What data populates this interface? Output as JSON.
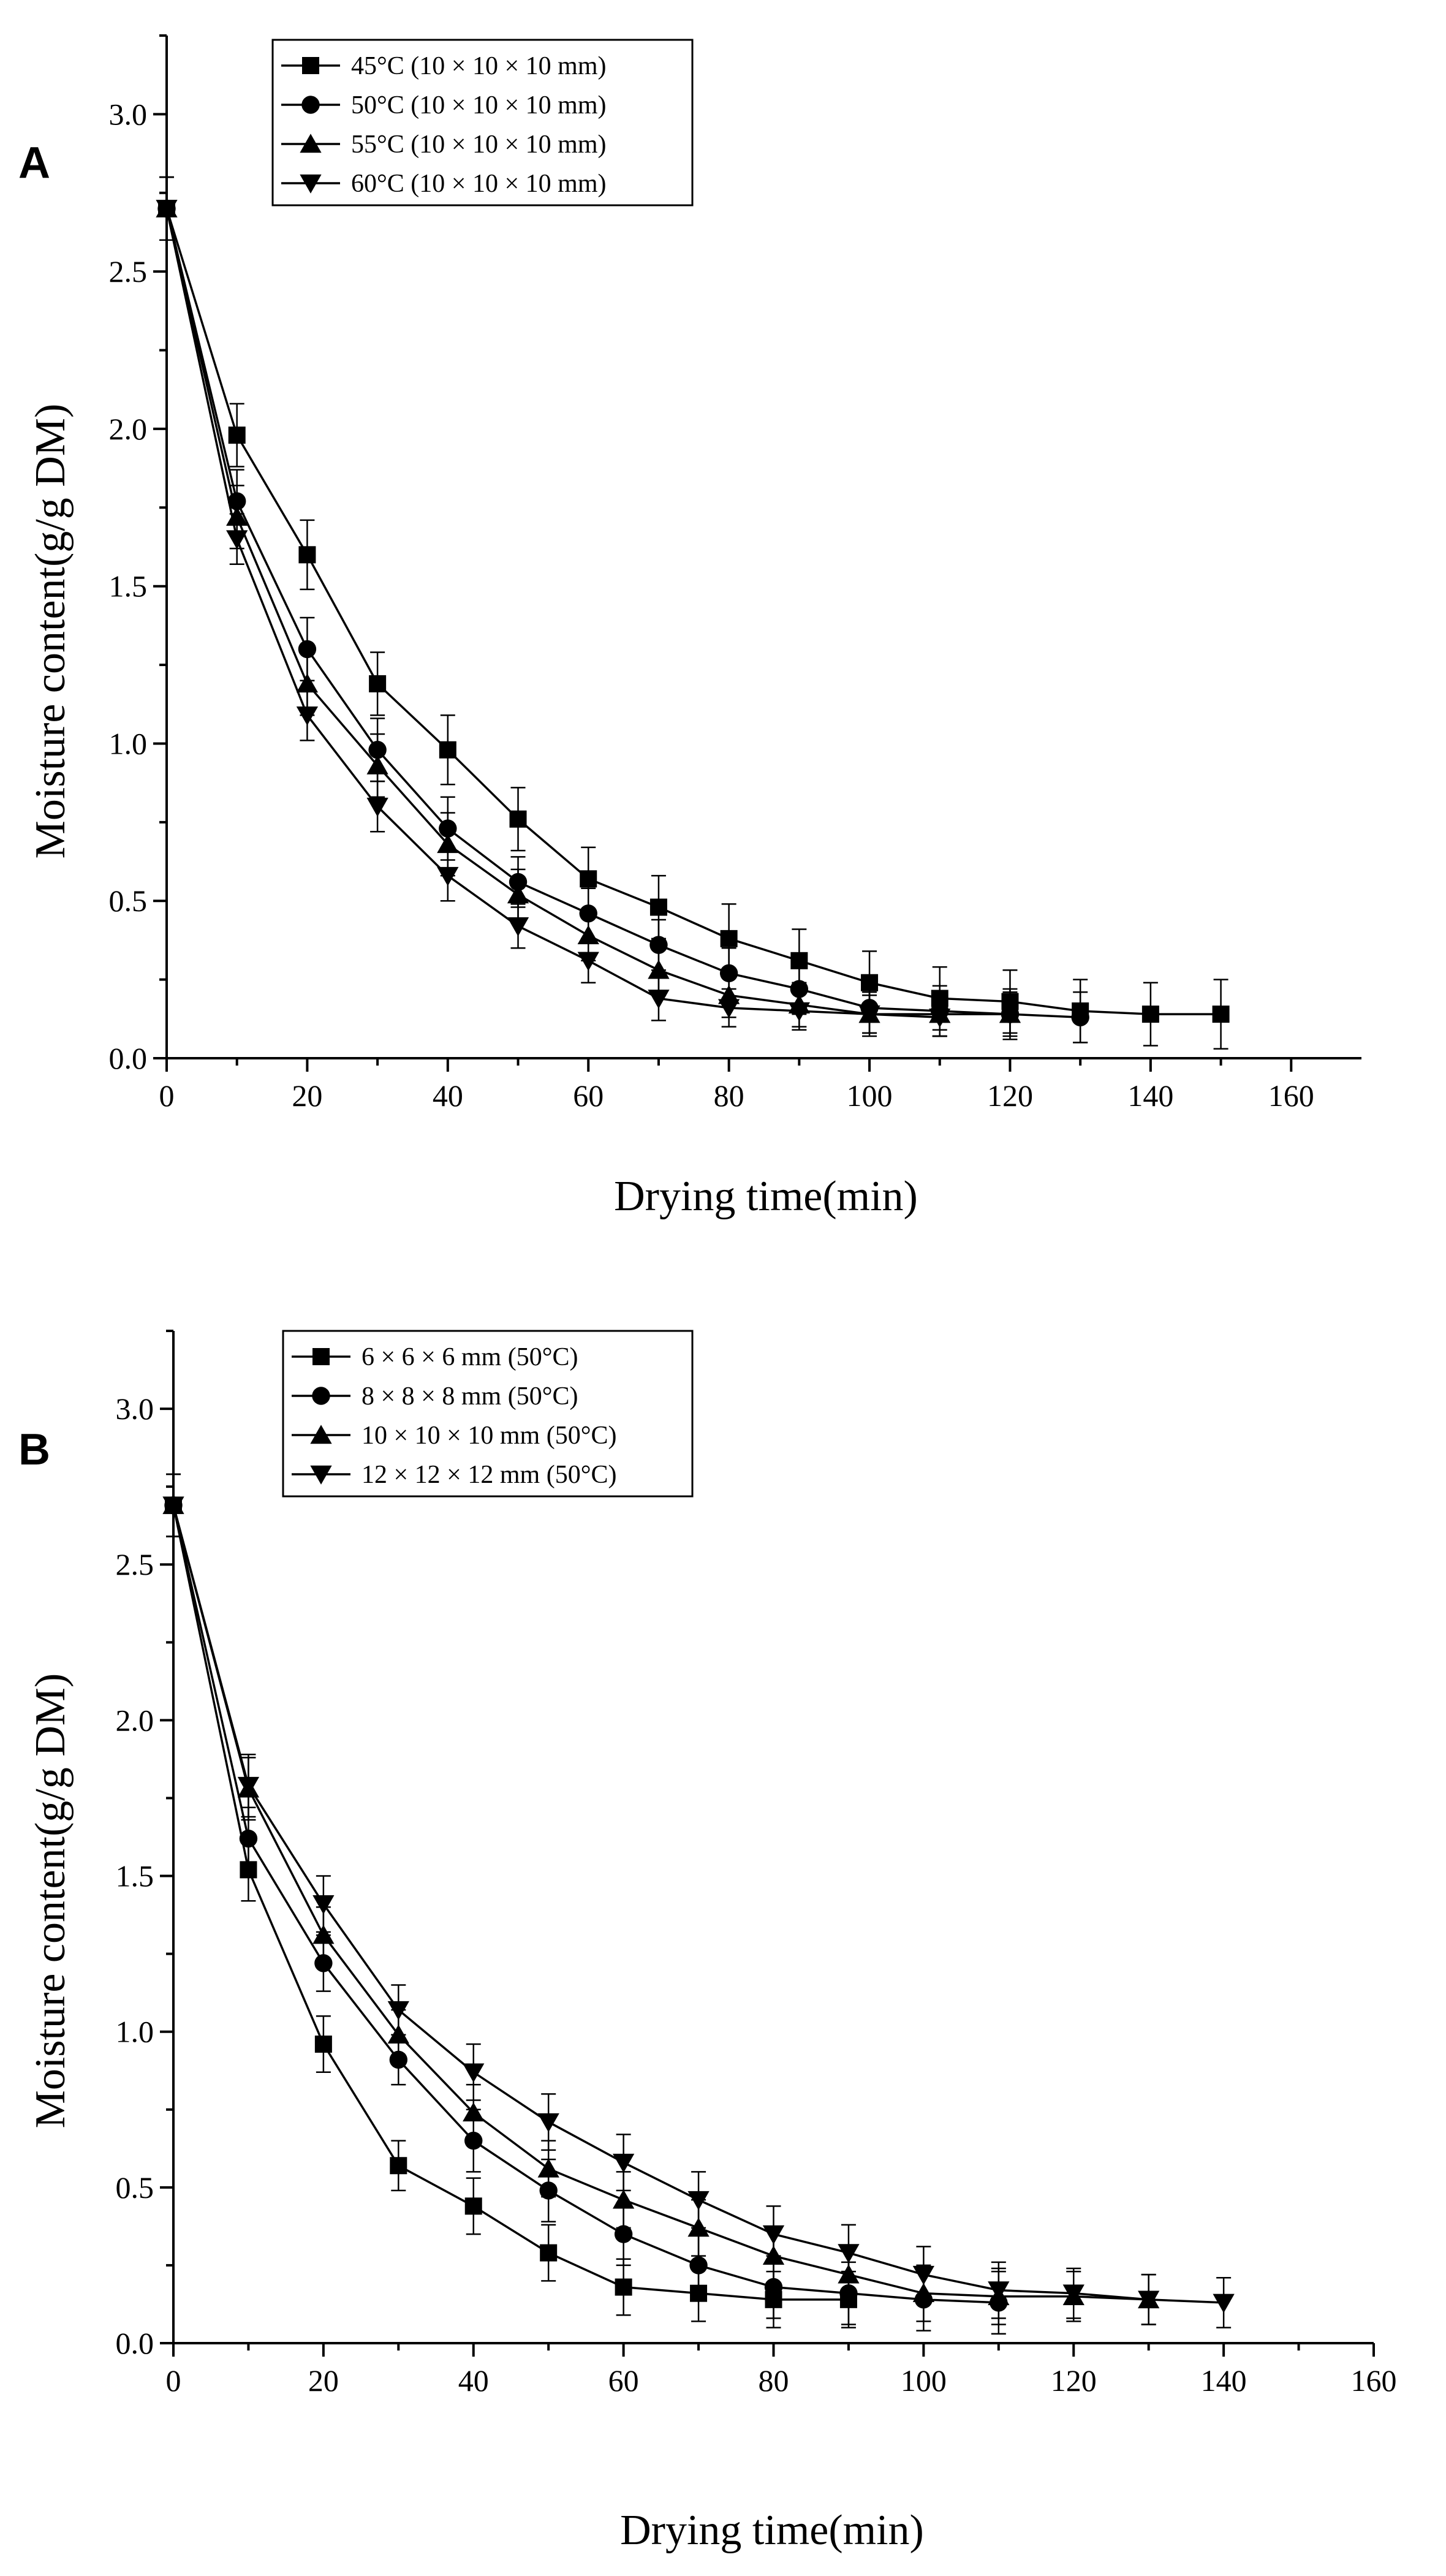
{
  "chart_data": [
    {
      "type": "line",
      "panel_label": "A",
      "xlabel": "Drying time(min)",
      "ylabel": "Moisture content(g/g DM)",
      "xlim": [
        0,
        170
      ],
      "ylim": [
        0,
        3.25
      ],
      "xticks": [
        "0",
        "20",
        "40",
        "60",
        "80",
        "100",
        "120",
        "140",
        "160"
      ],
      "yticks": [
        "0.0",
        "0.5",
        "1.0",
        "1.5",
        "2.0",
        "2.5",
        "3.0"
      ],
      "legend_position": "top-left",
      "series": [
        {
          "name": "45°C (10 × 10 × 10 mm)",
          "marker": "square",
          "x": [
            0,
            10,
            20,
            30,
            40,
            50,
            60,
            70,
            80,
            90,
            100,
            110,
            120,
            130,
            140,
            150
          ],
          "y": [
            2.7,
            1.98,
            1.6,
            1.19,
            0.98,
            0.76,
            0.57,
            0.48,
            0.38,
            0.31,
            0.24,
            0.19,
            0.18,
            0.15,
            0.14,
            0.14
          ],
          "err": [
            0.1,
            0.1,
            0.11,
            0.1,
            0.11,
            0.1,
            0.1,
            0.1,
            0.11,
            0.1,
            0.1,
            0.1,
            0.1,
            0.1,
            0.1,
            0.11
          ]
        },
        {
          "name": "50°C (10 × 10 × 10 mm)",
          "marker": "circle",
          "x": [
            0,
            10,
            20,
            30,
            40,
            50,
            60,
            70,
            80,
            90,
            100,
            110,
            120,
            130
          ],
          "y": [
            2.7,
            1.77,
            1.3,
            0.98,
            0.73,
            0.56,
            0.46,
            0.36,
            0.27,
            0.22,
            0.16,
            0.15,
            0.14,
            0.13
          ],
          "err": [
            0.1,
            0.1,
            0.1,
            0.1,
            0.1,
            0.08,
            0.08,
            0.08,
            0.08,
            0.08,
            0.08,
            0.08,
            0.08,
            0.08
          ]
        },
        {
          "name": "55°C (10 × 10 × 10 mm)",
          "marker": "triangle-up",
          "x": [
            0,
            10,
            20,
            30,
            40,
            50,
            60,
            70,
            80,
            90,
            100,
            110,
            120
          ],
          "y": [
            2.7,
            1.72,
            1.19,
            0.93,
            0.68,
            0.52,
            0.39,
            0.28,
            0.2,
            0.17,
            0.14,
            0.14,
            0.14
          ],
          "err": [
            0.1,
            0.1,
            0.1,
            0.1,
            0.1,
            0.08,
            0.08,
            0.08,
            0.07,
            0.07,
            0.07,
            0.07,
            0.07
          ]
        },
        {
          "name": "60°C (10 × 10 × 10 mm)",
          "marker": "triangle-down",
          "x": [
            0,
            10,
            20,
            30,
            40,
            50,
            60,
            70,
            80,
            90,
            100,
            110
          ],
          "y": [
            2.7,
            1.65,
            1.09,
            0.8,
            0.58,
            0.42,
            0.31,
            0.19,
            0.16,
            0.15,
            0.14,
            0.13
          ],
          "err": [
            0.1,
            0.08,
            0.08,
            0.08,
            0.08,
            0.07,
            0.07,
            0.07,
            0.06,
            0.06,
            0.06,
            0.06
          ]
        }
      ]
    },
    {
      "type": "line",
      "panel_label": "B",
      "xlabel": "Drying time(min)",
      "ylabel": "Moisture content(g/g DM)",
      "xlim": [
        0,
        160
      ],
      "ylim": [
        0,
        3.25
      ],
      "xticks": [
        "0",
        "20",
        "40",
        "60",
        "80",
        "100",
        "120",
        "140",
        "160"
      ],
      "yticks": [
        "0.0",
        "0.5",
        "1.0",
        "1.5",
        "2.0",
        "2.5",
        "3.0"
      ],
      "legend_position": "top-left",
      "series": [
        {
          "name": "6 × 6 × 6 mm (50°C)",
          "marker": "square",
          "x": [
            0,
            10,
            20,
            30,
            40,
            50,
            60,
            70,
            80,
            90
          ],
          "y": [
            2.69,
            1.52,
            0.96,
            0.57,
            0.44,
            0.29,
            0.18,
            0.16,
            0.14,
            0.14
          ],
          "err": [
            0.1,
            0.1,
            0.09,
            0.08,
            0.09,
            0.09,
            0.09,
            0.09,
            0.09,
            0.09
          ]
        },
        {
          "name": "8 × 8 × 8 mm (50°C)",
          "marker": "circle",
          "x": [
            0,
            10,
            20,
            30,
            40,
            50,
            60,
            70,
            80,
            90,
            100,
            110
          ],
          "y": [
            2.69,
            1.62,
            1.22,
            0.91,
            0.65,
            0.49,
            0.35,
            0.25,
            0.18,
            0.16,
            0.14,
            0.13
          ],
          "err": [
            0.1,
            0.1,
            0.09,
            0.08,
            0.1,
            0.1,
            0.1,
            0.1,
            0.1,
            0.1,
            0.1,
            0.1
          ]
        },
        {
          "name": "10 × 10 × 10 mm (50°C)",
          "marker": "triangle-up",
          "x": [
            0,
            10,
            20,
            30,
            40,
            50,
            60,
            70,
            80,
            90,
            100,
            110,
            120,
            130
          ],
          "y": [
            2.69,
            1.78,
            1.31,
            0.99,
            0.74,
            0.56,
            0.46,
            0.37,
            0.28,
            0.22,
            0.16,
            0.15,
            0.15,
            0.14
          ],
          "err": [
            0.1,
            0.1,
            0.09,
            0.08,
            0.09,
            0.09,
            0.09,
            0.09,
            0.09,
            0.09,
            0.09,
            0.09,
            0.08,
            0.08
          ]
        },
        {
          "name": "12 × 12 × 12 mm (50°C)",
          "marker": "triangle-down",
          "x": [
            0,
            10,
            20,
            30,
            40,
            50,
            60,
            70,
            80,
            90,
            100,
            110,
            120,
            130,
            140
          ],
          "y": [
            2.69,
            1.79,
            1.41,
            1.07,
            0.87,
            0.71,
            0.58,
            0.46,
            0.35,
            0.29,
            0.22,
            0.17,
            0.16,
            0.14,
            0.13
          ],
          "err": [
            0.1,
            0.1,
            0.09,
            0.08,
            0.09,
            0.09,
            0.09,
            0.09,
            0.09,
            0.09,
            0.09,
            0.09,
            0.08,
            0.08,
            0.08
          ]
        }
      ]
    }
  ]
}
